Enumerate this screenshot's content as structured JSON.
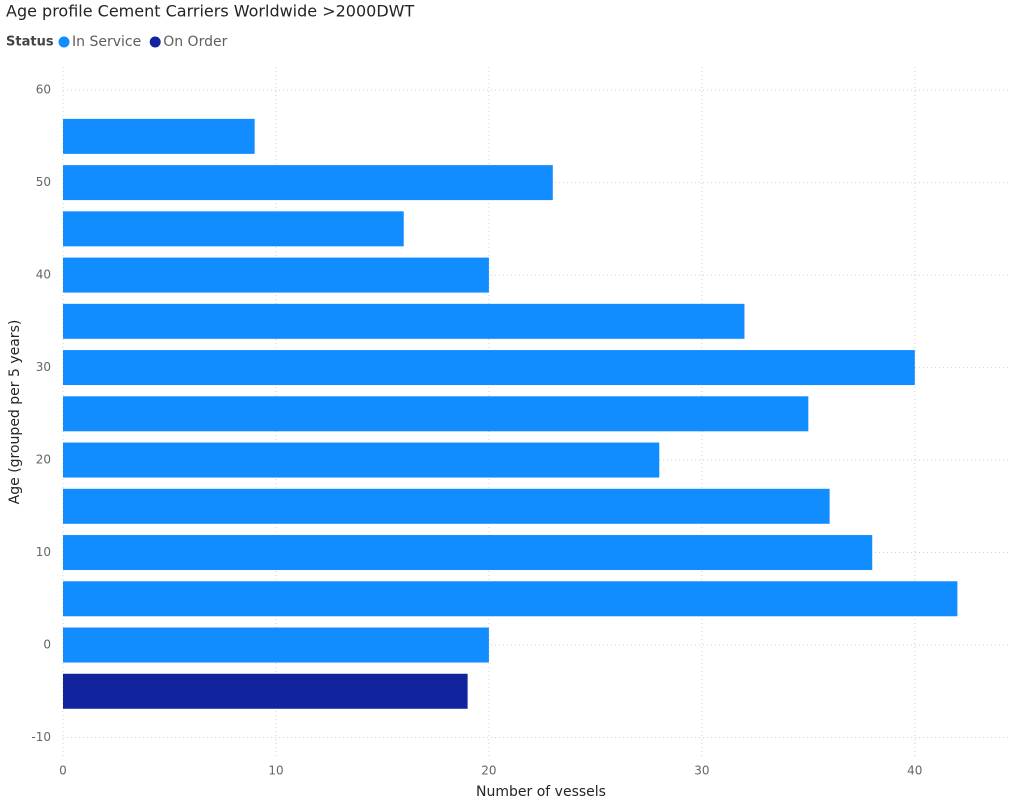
{
  "chart_data": {
    "type": "hbar",
    "title": "Age profile Cement Carriers Worldwide >2000DWT",
    "legend_title": "Status",
    "x_label": "Number of vessels",
    "y_label": "Age (grouped per 5 years)",
    "series": [
      {
        "name": "In Service",
        "color": "#118DFF",
        "y": [
          55,
          50,
          45,
          40,
          35,
          30,
          25,
          20,
          15,
          10,
          5,
          0
        ],
        "values": [
          9,
          23,
          16,
          20,
          32,
          40,
          35,
          28,
          36,
          38,
          42,
          20
        ]
      },
      {
        "name": "On Order",
        "color": "#12239E",
        "y": [
          -5
        ],
        "values": [
          19
        ]
      }
    ],
    "xlim": [
      0,
      44
    ],
    "xticks": [
      0,
      10,
      20,
      30,
      40
    ],
    "ylim": [
      -12,
      62.5
    ],
    "yticks": [
      -10,
      0,
      10,
      20,
      30,
      40,
      50,
      60
    ],
    "grid": true,
    "legend_position": "top-left"
  }
}
